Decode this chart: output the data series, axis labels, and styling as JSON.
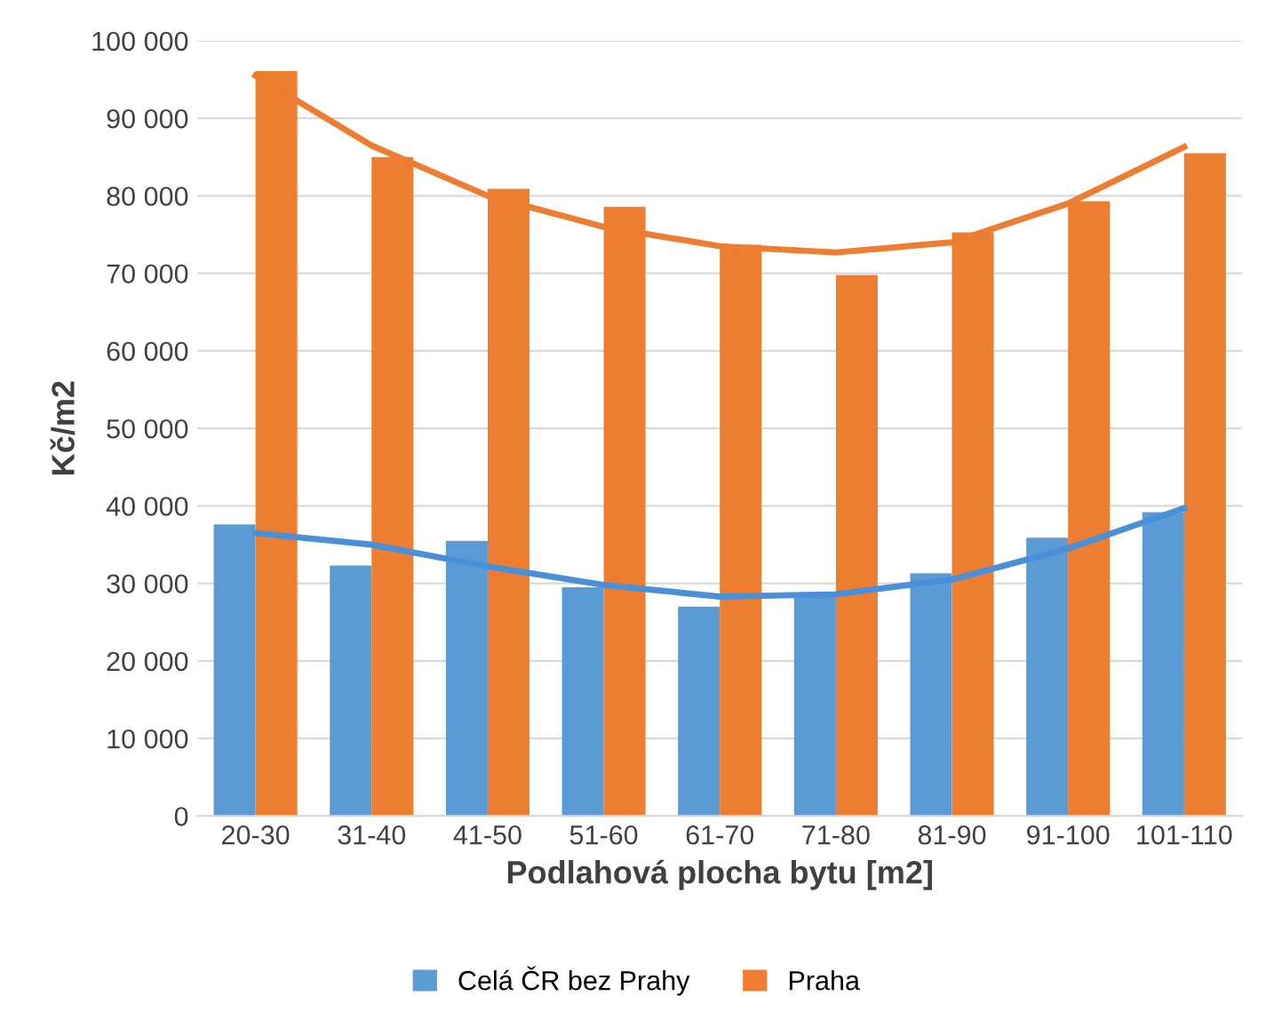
{
  "chart_data": {
    "type": "bar",
    "xlabel": "Podlahová plocha bytu [m2]",
    "ylabel": "Kč/m2",
    "categories": [
      "20-30",
      "31-40",
      "41-50",
      "51-60",
      "61-70",
      "71-80",
      "81-90",
      "91-100",
      "101-110"
    ],
    "series": [
      {
        "name": "Celá ČR bez Prahy",
        "color": "#5b9bd5",
        "values": [
          37600,
          32300,
          35500,
          29500,
          27000,
          28800,
          31300,
          35900,
          39200
        ]
      },
      {
        "name": "Praha",
        "color": "#ed7d31",
        "values": [
          96100,
          85000,
          80900,
          78600,
          73700,
          69800,
          75300,
          79300,
          85500
        ]
      },
      {
        "type": "line",
        "color": "#ed7d31",
        "values": [
          95500,
          86500,
          80000,
          76000,
          73500,
          72700,
          74000,
          79000,
          86300
        ]
      },
      {
        "type": "line",
        "color": "#4a90d9",
        "values": [
          36500,
          35000,
          32200,
          29800,
          28300,
          28600,
          30500,
          34500,
          39700
        ]
      }
    ],
    "ylim": [
      0,
      100000
    ],
    "yticks": [
      0,
      {
        "value": 10000,
        "label": "10 000"
      },
      {
        "value": 20000,
        "label": "20 000"
      },
      {
        "value": 30000,
        "label": "30 000"
      },
      {
        "value": 40000,
        "label": "40 000"
      },
      {
        "value": 50000,
        "label": "50 000"
      },
      {
        "value": 60000,
        "label": "60 000"
      },
      {
        "value": 70000,
        "label": "70 000"
      },
      {
        "value": 80000,
        "label": "80 000"
      },
      {
        "value": 90000,
        "label": "90 000"
      },
      {
        "value": 100000,
        "label": "100 000"
      }
    ],
    "grid": "y",
    "legend": "bottom"
  }
}
